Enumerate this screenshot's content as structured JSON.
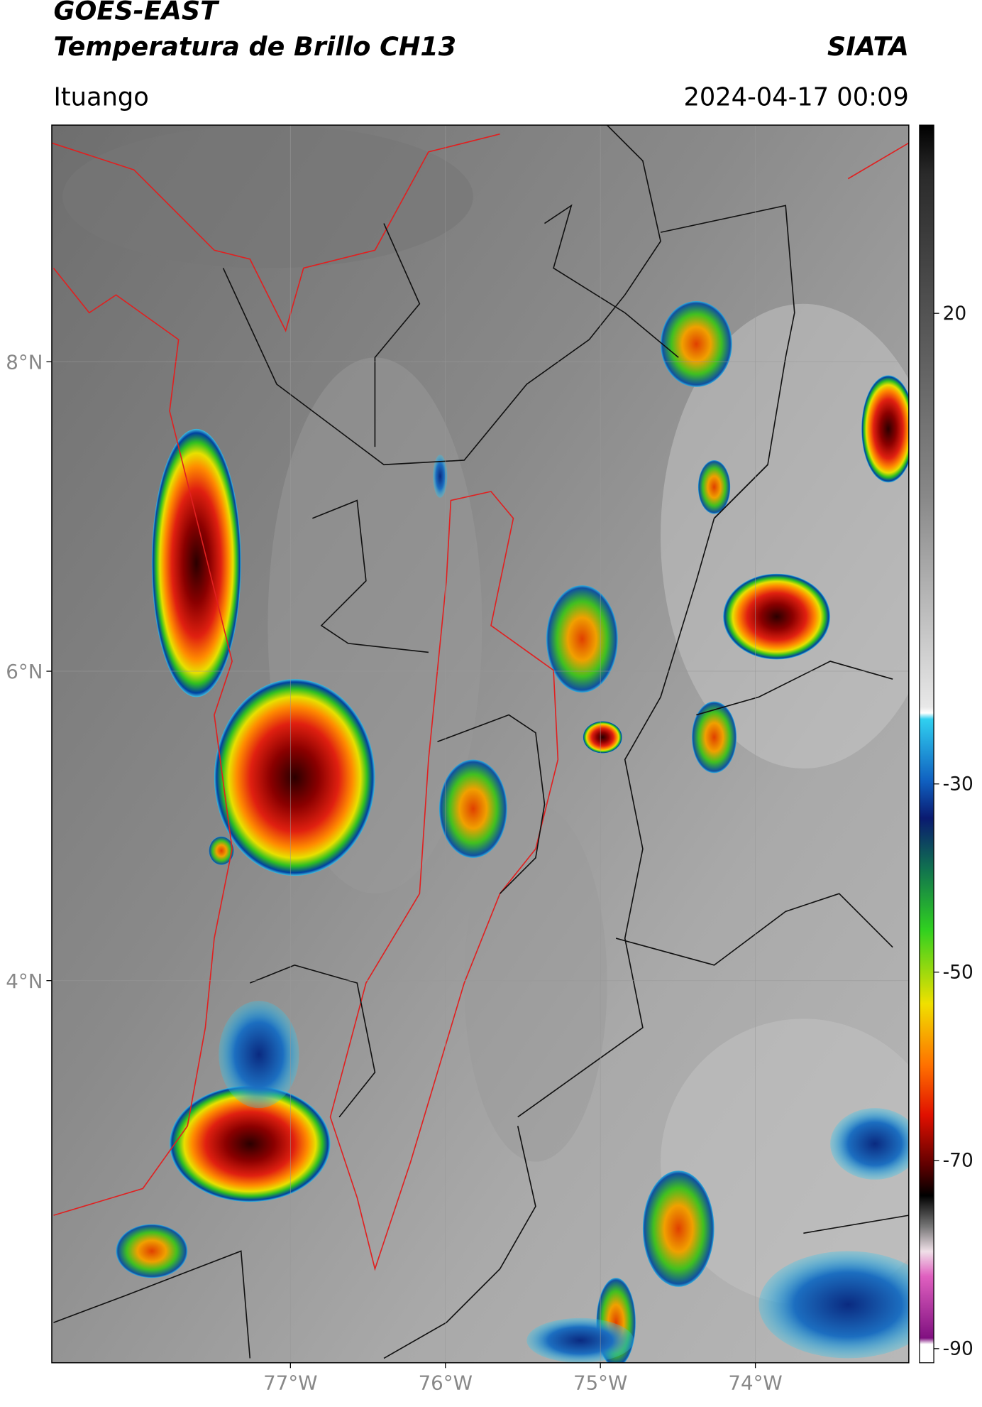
{
  "header": {
    "title": "GOES-EAST",
    "subtitle": "Temperatura de Brillo CH13",
    "brand": "SIATA",
    "location": "Ituango",
    "datetime": "2024-04-17 00:09"
  },
  "map": {
    "xlim": [
      -78.54,
      -73.01
    ],
    "ylim": [
      1.53,
      9.53
    ],
    "xticks": [
      {
        "value": -77,
        "label": "77°W"
      },
      {
        "value": -76,
        "label": "76°W"
      },
      {
        "value": -75,
        "label": "75°W"
      },
      {
        "value": -74,
        "label": "74°W"
      }
    ],
    "yticks": [
      {
        "value": 8,
        "label": "8°N"
      },
      {
        "value": 6,
        "label": "6°N"
      },
      {
        "value": 4,
        "label": "4°N"
      }
    ]
  },
  "colorbar": {
    "lim": [
      -91.5,
      40
    ],
    "ticks": [
      20,
      -30,
      -50,
      -70,
      -90
    ]
  }
}
